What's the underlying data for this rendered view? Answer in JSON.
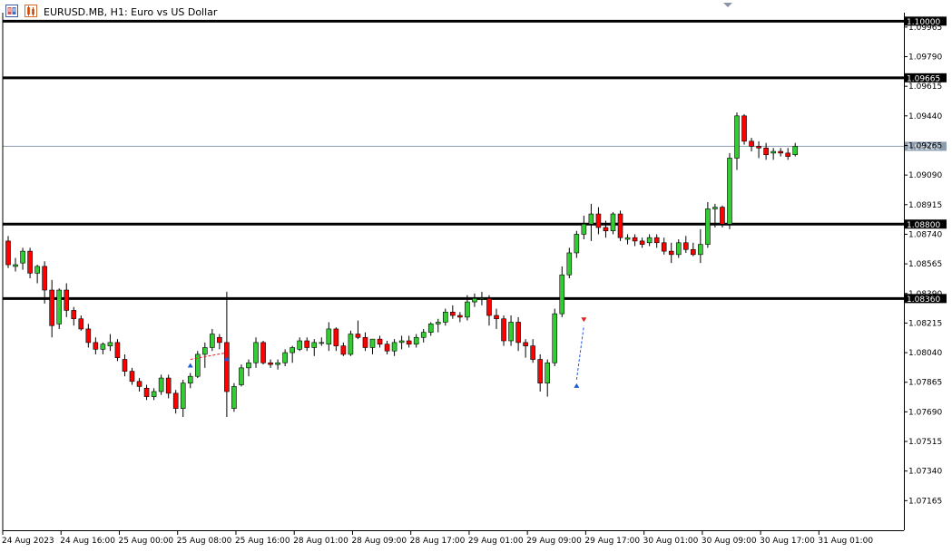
{
  "header": {
    "title": "EURUSD.MB, H1:  Euro vs US Dollar",
    "icons": [
      "one-click-trading-icon",
      "trade-levels-icon"
    ]
  },
  "colors": {
    "bull": "#33cc33",
    "bear": "#ff0000",
    "bull_border": "#000000",
    "bear_border": "#000000",
    "level_line": "#000000",
    "bid_line": "#8c9db0",
    "axis": "#000000",
    "background": "#ffffff"
  },
  "y_axis": {
    "min": 1.0699,
    "max": 1.1005,
    "ticks": [
      "1.07165",
      "1.07340",
      "1.07515",
      "1.07690",
      "1.07865",
      "1.08040",
      "1.08215",
      "1.08390",
      "1.08565",
      "1.08740",
      "1.08915",
      "1.09090",
      "1.09265",
      "1.09440",
      "1.09615",
      "1.09790",
      "1.09965"
    ]
  },
  "x_axis": {
    "labels": [
      "24 Aug 2023",
      "24 Aug 16:00",
      "25 Aug 00:00",
      "25 Aug 08:00",
      "25 Aug 16:00",
      "28 Aug 01:00",
      "28 Aug 09:00",
      "28 Aug 17:00",
      "29 Aug 01:00",
      "29 Aug 09:00",
      "29 Aug 17:00",
      "30 Aug 01:00",
      "30 Aug 09:00",
      "30 Aug 17:00",
      "31 Aug 01:00"
    ],
    "label_bar_index": [
      0,
      8,
      16,
      24,
      32,
      40,
      48,
      56,
      64,
      72,
      80,
      88,
      96,
      104,
      112
    ]
  },
  "levels": [
    {
      "price": 1.1,
      "label": "1.10000"
    },
    {
      "price": 1.09665,
      "label": "1.09665"
    },
    {
      "price": 1.088,
      "label": "1.08800"
    },
    {
      "price": 1.0836,
      "label": "1.08360"
    }
  ],
  "bid": {
    "price": 1.0926,
    "label": "1.09260"
  },
  "trade_markers": [
    {
      "bar": 25,
      "price": 1.08,
      "dir": "buy"
    },
    {
      "bar": 30,
      "price": 1.0804,
      "dir": "buy"
    },
    {
      "bar": 78,
      "price": 1.0788,
      "dir": "buy"
    },
    {
      "bar": 79,
      "price": 1.082,
      "dir": "sell"
    }
  ],
  "chart_data": {
    "type": "candlestick",
    "symbol": "EURUSD.MB",
    "timeframe": "H1",
    "ohlc": [
      [
        1.087,
        1.0873,
        1.0854,
        1.0856
      ],
      [
        1.0855,
        1.086,
        1.0852,
        1.0856
      ],
      [
        1.0857,
        1.0866,
        1.0853,
        1.0864
      ],
      [
        1.0864,
        1.0866,
        1.0848,
        1.0851
      ],
      [
        1.0851,
        1.0856,
        1.0845,
        1.0855
      ],
      [
        1.0855,
        1.0858,
        1.0833,
        1.0841
      ],
      [
        1.0841,
        1.0847,
        1.0813,
        1.082
      ],
      [
        1.0821,
        1.0842,
        1.0818,
        1.0841
      ],
      [
        1.0841,
        1.0845,
        1.0825,
        1.0829
      ],
      [
        1.0829,
        1.0831,
        1.082,
        1.0824
      ],
      [
        1.0824,
        1.0826,
        1.0817,
        1.0818
      ],
      [
        1.0818,
        1.0821,
        1.0807,
        1.081
      ],
      [
        1.081,
        1.0813,
        1.0803,
        1.0806
      ],
      [
        1.0806,
        1.081,
        1.0803,
        1.0809
      ],
      [
        1.0808,
        1.0815,
        1.0805,
        1.081
      ],
      [
        1.081,
        1.0812,
        1.0799,
        1.0801
      ],
      [
        1.08,
        1.0803,
        1.079,
        1.0793
      ],
      [
        1.0793,
        1.0795,
        1.0785,
        1.0787
      ],
      [
        1.0787,
        1.0789,
        1.0781,
        1.0784
      ],
      [
        1.0783,
        1.0785,
        1.0776,
        1.0778
      ],
      [
        1.0778,
        1.0783,
        1.0776,
        1.0781
      ],
      [
        1.0781,
        1.0791,
        1.0779,
        1.0789
      ],
      [
        1.0789,
        1.0791,
        1.0777,
        1.078
      ],
      [
        1.078,
        1.0782,
        1.0768,
        1.0771
      ],
      [
        1.0771,
        1.0788,
        1.0766,
        1.0786
      ],
      [
        1.0786,
        1.0792,
        1.0783,
        1.079
      ],
      [
        1.079,
        1.0805,
        1.0789,
        1.0803
      ],
      [
        1.0803,
        1.081,
        1.0795,
        1.0807
      ],
      [
        1.0807,
        1.0818,
        1.0805,
        1.0815
      ],
      [
        1.0813,
        1.0815,
        1.0806,
        1.081
      ],
      [
        1.081,
        1.084,
        1.0766,
        1.0781
      ],
      [
        1.0771,
        1.0786,
        1.0769,
        1.0784
      ],
      [
        1.0785,
        1.0797,
        1.0784,
        1.0795
      ],
      [
        1.0795,
        1.08,
        1.079,
        1.0798
      ],
      [
        1.0798,
        1.0813,
        1.0795,
        1.081
      ],
      [
        1.081,
        1.0811,
        1.0797,
        1.0798
      ],
      [
        1.0798,
        1.08,
        1.0795,
        1.0797
      ],
      [
        1.0797,
        1.08,
        1.0794,
        1.0798
      ],
      [
        1.0798,
        1.0806,
        1.0796,
        1.0804
      ],
      [
        1.0804,
        1.0808,
        1.0798,
        1.0807
      ],
      [
        1.0806,
        1.0813,
        1.0805,
        1.0811
      ],
      [
        1.0811,
        1.0813,
        1.0805,
        1.0807
      ],
      [
        1.0807,
        1.0812,
        1.0802,
        1.081
      ],
      [
        1.081,
        1.0813,
        1.0808,
        1.081
      ],
      [
        1.0809,
        1.0822,
        1.0805,
        1.0818
      ],
      [
        1.0818,
        1.0819,
        1.0805,
        1.0808
      ],
      [
        1.0808,
        1.081,
        1.0802,
        1.0803
      ],
      [
        1.0803,
        1.0817,
        1.0802,
        1.0815
      ],
      [
        1.0815,
        1.0823,
        1.0812,
        1.0813
      ],
      [
        1.0813,
        1.0816,
        1.0805,
        1.0807
      ],
      [
        1.0807,
        1.0812,
        1.0803,
        1.0812
      ],
      [
        1.0812,
        1.0814,
        1.0807,
        1.0809
      ],
      [
        1.0809,
        1.0811,
        1.0803,
        1.0805
      ],
      [
        1.0805,
        1.0812,
        1.0802,
        1.081
      ],
      [
        1.081,
        1.0814,
        1.0806,
        1.0811
      ],
      [
        1.0811,
        1.0814,
        1.0807,
        1.0809
      ],
      [
        1.0809,
        1.0815,
        1.0807,
        1.0813
      ],
      [
        1.0813,
        1.0818,
        1.081,
        1.0816
      ],
      [
        1.0816,
        1.0822,
        1.0814,
        1.0821
      ],
      [
        1.0821,
        1.0824,
        1.0816,
        1.0822
      ],
      [
        1.0822,
        1.083,
        1.082,
        1.0828
      ],
      [
        1.0828,
        1.0832,
        1.0824,
        1.0826
      ],
      [
        1.0826,
        1.0828,
        1.0822,
        1.0825
      ],
      [
        1.0825,
        1.0838,
        1.0823,
        1.0834
      ],
      [
        1.0834,
        1.0839,
        1.0831,
        1.0836
      ],
      [
        1.0836,
        1.084,
        1.0832,
        1.0836
      ],
      [
        1.0836,
        1.0838,
        1.082,
        1.0826
      ],
      [
        1.0826,
        1.083,
        1.0818,
        1.0824
      ],
      [
        1.0824,
        1.0826,
        1.0808,
        1.0811
      ],
      [
        1.0811,
        1.0826,
        1.0808,
        1.0822
      ],
      [
        1.0822,
        1.0825,
        1.0805,
        1.081
      ],
      [
        1.081,
        1.0812,
        1.0801,
        1.0808
      ],
      [
        1.0808,
        1.0812,
        1.0798,
        1.08
      ],
      [
        1.08,
        1.0803,
        1.0781,
        1.0786
      ],
      [
        1.0786,
        1.08,
        1.0778,
        1.0798
      ],
      [
        1.0798,
        1.083,
        1.0796,
        1.0827
      ],
      [
        1.0827,
        1.0855,
        1.0825,
        1.085
      ],
      [
        1.085,
        1.0866,
        1.0848,
        1.0863
      ],
      [
        1.0863,
        1.0876,
        1.086,
        1.0874
      ],
      [
        1.0874,
        1.0885,
        1.0871,
        1.088
      ],
      [
        1.088,
        1.0892,
        1.087,
        1.0886
      ],
      [
        1.0886,
        1.089,
        1.0874,
        1.0878
      ],
      [
        1.0878,
        1.0882,
        1.0872,
        1.0876
      ],
      [
        1.0876,
        1.0887,
        1.0874,
        1.0886
      ],
      [
        1.0886,
        1.0888,
        1.087,
        1.0872
      ],
      [
        1.0871,
        1.0874,
        1.0868,
        1.0872
      ],
      [
        1.0872,
        1.0874,
        1.0867,
        1.087
      ],
      [
        1.087,
        1.0872,
        1.0866,
        1.0868
      ],
      [
        1.0869,
        1.0874,
        1.0867,
        1.0872
      ],
      [
        1.0872,
        1.0874,
        1.0866,
        1.0869
      ],
      [
        1.0869,
        1.0872,
        1.0862,
        1.0864
      ],
      [
        1.0864,
        1.0869,
        1.0857,
        1.0862
      ],
      [
        1.0862,
        1.0871,
        1.086,
        1.0869
      ],
      [
        1.0869,
        1.0873,
        1.0863,
        1.0865
      ],
      [
        1.0865,
        1.0869,
        1.0861,
        1.0862
      ],
      [
        1.0862,
        1.0877,
        1.0857,
        1.0868
      ],
      [
        1.0868,
        1.0893,
        1.0866,
        1.0889
      ],
      [
        1.0889,
        1.0892,
        1.0878,
        1.089
      ],
      [
        1.089,
        1.0891,
        1.0878,
        1.088
      ],
      [
        1.088,
        1.0922,
        1.0877,
        1.0919
      ],
      [
        1.0919,
        1.0946,
        1.0912,
        1.0944
      ],
      [
        1.0944,
        1.0945,
        1.0927,
        1.0929
      ],
      [
        1.0929,
        1.0931,
        1.0923,
        1.0926
      ],
      [
        1.0926,
        1.0929,
        1.0919,
        1.0925
      ],
      [
        1.0925,
        1.0928,
        1.0918,
        1.0921
      ],
      [
        1.0922,
        1.0925,
        1.0918,
        1.0923
      ],
      [
        1.0923,
        1.0925,
        1.092,
        1.0922
      ],
      [
        1.0922,
        1.0925,
        1.0918,
        1.092
      ],
      [
        1.0921,
        1.0928,
        1.092,
        1.0926
      ]
    ]
  }
}
